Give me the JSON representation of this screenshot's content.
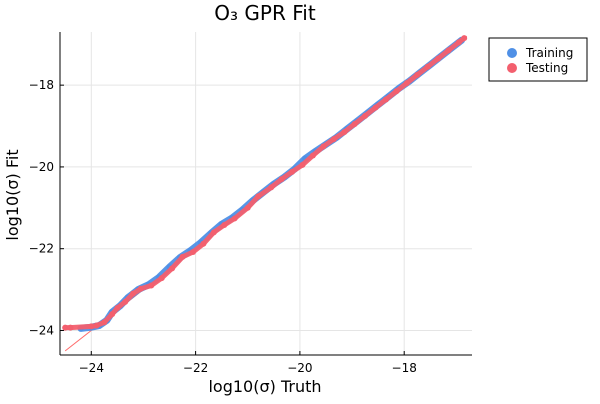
{
  "chart_data": {
    "type": "scatter",
    "title": "O₃ GPR Fit",
    "xlabel": "log10(σ) Truth",
    "ylabel": "log10(σ) Fit",
    "xlim": [
      -24.6,
      -16.7
    ],
    "ylim": [
      -24.6,
      -16.7
    ],
    "xticks": [
      -24,
      -22,
      -20,
      -18
    ],
    "yticks": [
      -24,
      -22,
      -20,
      -18
    ],
    "xtick_labels": [
      "−24",
      "−22",
      "−20",
      "−18"
    ],
    "ytick_labels": [
      "−24",
      "−22",
      "−20",
      "−18"
    ],
    "grid": true,
    "legend_position": "top-right",
    "reference_line": {
      "x": [
        -24.5,
        -16.8
      ],
      "y": [
        -24.5,
        -16.8
      ],
      "color": "#ff6b6b"
    },
    "series": [
      {
        "name": "Training",
        "color": "#4f90e6",
        "points": [
          [
            -24.2,
            -23.95
          ],
          [
            -24.0,
            -23.92
          ],
          [
            -23.85,
            -23.88
          ],
          [
            -23.7,
            -23.75
          ],
          [
            -23.6,
            -23.55
          ],
          [
            -23.45,
            -23.4
          ],
          [
            -23.3,
            -23.2
          ],
          [
            -23.1,
            -23.0
          ],
          [
            -22.9,
            -22.88
          ],
          [
            -22.7,
            -22.7
          ],
          [
            -22.5,
            -22.45
          ],
          [
            -22.3,
            -22.22
          ],
          [
            -22.1,
            -22.05
          ],
          [
            -21.9,
            -21.85
          ],
          [
            -21.7,
            -21.62
          ],
          [
            -21.5,
            -21.4
          ],
          [
            -21.3,
            -21.25
          ],
          [
            -21.1,
            -21.05
          ],
          [
            -20.9,
            -20.82
          ],
          [
            -20.7,
            -20.62
          ],
          [
            -20.5,
            -20.42
          ],
          [
            -20.3,
            -20.25
          ],
          [
            -20.1,
            -20.05
          ],
          [
            -19.9,
            -19.8
          ],
          [
            -19.7,
            -19.62
          ],
          [
            -19.5,
            -19.45
          ],
          [
            -19.3,
            -19.28
          ],
          [
            -19.1,
            -19.08
          ],
          [
            -18.9,
            -18.88
          ],
          [
            -18.7,
            -18.68
          ],
          [
            -18.5,
            -18.48
          ],
          [
            -18.3,
            -18.28
          ],
          [
            -18.1,
            -18.08
          ],
          [
            -17.9,
            -17.9
          ],
          [
            -17.7,
            -17.7
          ],
          [
            -17.5,
            -17.5
          ],
          [
            -17.3,
            -17.3
          ],
          [
            -17.1,
            -17.1
          ],
          [
            -16.9,
            -16.9
          ]
        ]
      },
      {
        "name": "Testing",
        "color": "#f35f6e",
        "points": [
          [
            -24.5,
            -23.93
          ],
          [
            -24.4,
            -23.93
          ],
          [
            -24.0,
            -23.9
          ],
          [
            -23.9,
            -23.88
          ],
          [
            -23.75,
            -23.8
          ],
          [
            -23.6,
            -23.6
          ],
          [
            -23.5,
            -23.45
          ],
          [
            -23.35,
            -23.3
          ],
          [
            -23.2,
            -23.1
          ],
          [
            -23.05,
            -22.98
          ],
          [
            -22.85,
            -22.9
          ],
          [
            -22.65,
            -22.72
          ],
          [
            -22.45,
            -22.48
          ],
          [
            -22.25,
            -22.2
          ],
          [
            -22.05,
            -22.08
          ],
          [
            -21.85,
            -21.88
          ],
          [
            -21.65,
            -21.6
          ],
          [
            -21.45,
            -21.42
          ],
          [
            -21.25,
            -21.26
          ],
          [
            -21.0,
            -21.0
          ],
          [
            -20.8,
            -20.72
          ],
          [
            -20.55,
            -20.5
          ],
          [
            -20.35,
            -20.3
          ],
          [
            -20.15,
            -20.12
          ],
          [
            -19.95,
            -19.95
          ],
          [
            -19.75,
            -19.72
          ],
          [
            -19.55,
            -19.5
          ],
          [
            -19.35,
            -19.32
          ],
          [
            -19.15,
            -19.15
          ],
          [
            -18.95,
            -18.95
          ],
          [
            -18.75,
            -18.75
          ],
          [
            -18.55,
            -18.55
          ],
          [
            -18.35,
            -18.35
          ],
          [
            -18.15,
            -18.15
          ],
          [
            -17.95,
            -17.95
          ],
          [
            -17.75,
            -17.75
          ],
          [
            -17.55,
            -17.55
          ],
          [
            -17.35,
            -17.35
          ],
          [
            -17.15,
            -17.15
          ],
          [
            -16.95,
            -16.95
          ],
          [
            -16.85,
            -16.85
          ]
        ]
      }
    ]
  }
}
